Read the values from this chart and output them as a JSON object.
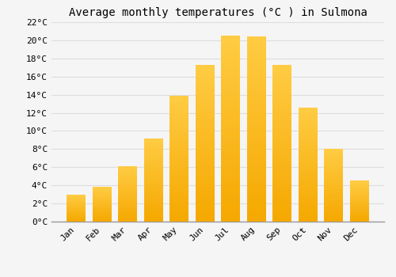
{
  "title": "Average monthly temperatures (°C ) in Sulmona",
  "months": [
    "Jan",
    "Feb",
    "Mar",
    "Apr",
    "May",
    "Jun",
    "Jul",
    "Aug",
    "Sep",
    "Oct",
    "Nov",
    "Dec"
  ],
  "values": [
    3.0,
    3.8,
    6.1,
    9.2,
    13.9,
    17.3,
    20.5,
    20.4,
    17.3,
    12.6,
    8.0,
    4.5
  ],
  "bar_color_light": "#FFCC44",
  "bar_color_dark": "#F5A800",
  "background_color": "#F5F5F5",
  "grid_color": "#DDDDDD",
  "ylim": [
    0,
    22
  ],
  "yticks": [
    0,
    2,
    4,
    6,
    8,
    10,
    12,
    14,
    16,
    18,
    20,
    22
  ],
  "title_fontsize": 10,
  "tick_fontsize": 8,
  "title_font": "monospace",
  "tick_font": "monospace",
  "bar_width": 0.75,
  "figsize": [
    5.0,
    3.5
  ],
  "dpi": 100
}
